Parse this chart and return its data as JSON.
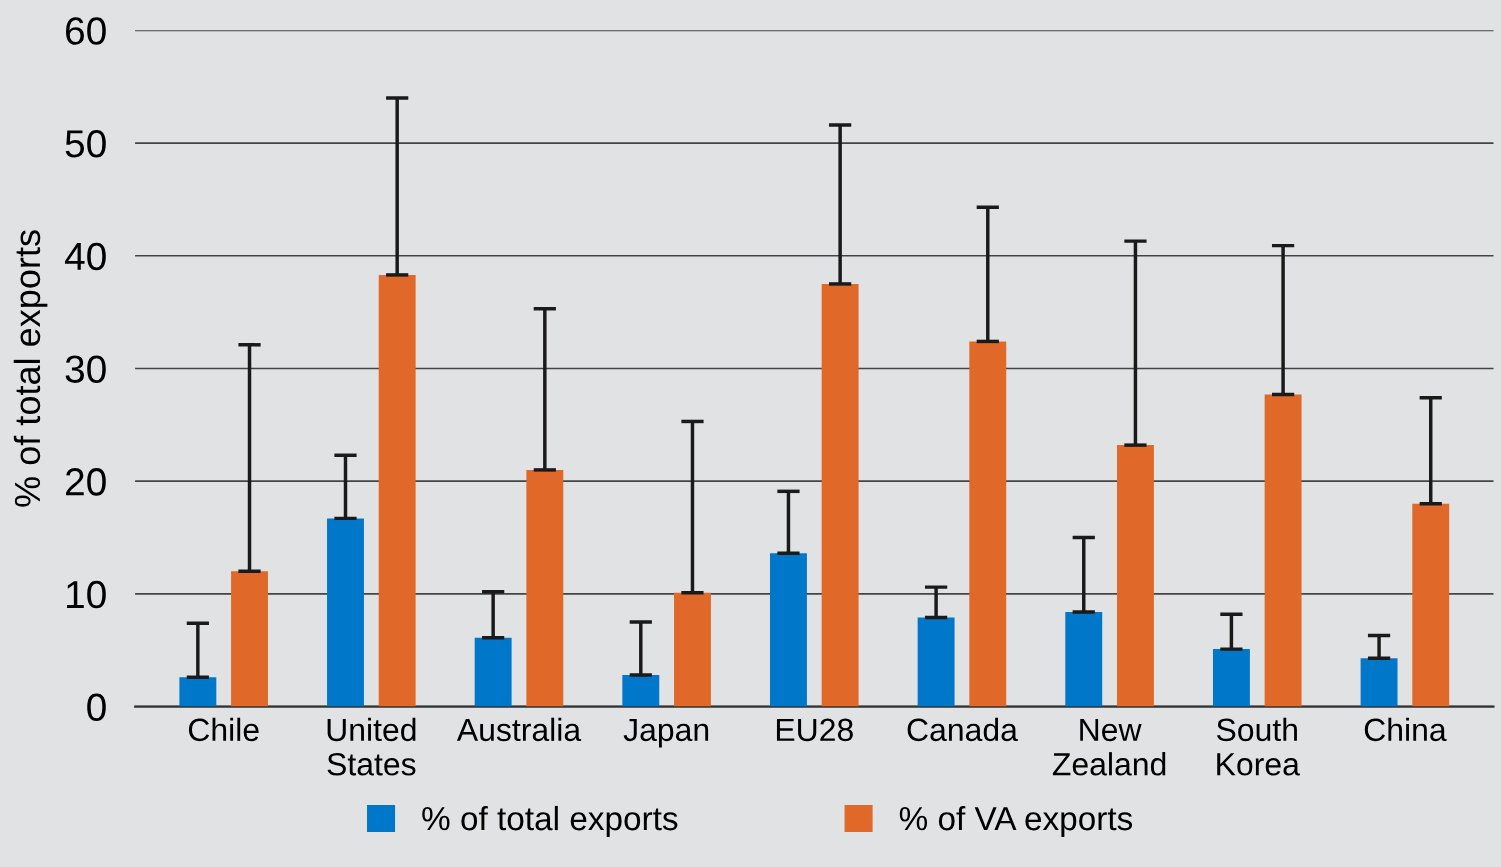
{
  "chart_data": {
    "type": "bar",
    "ylabel": "% of total exports",
    "categories": [
      "Chile",
      "United\nStates",
      "Australia",
      "Japan",
      "EU28",
      "Canada",
      "New\nZealand",
      "South\nKorea",
      "China"
    ],
    "series": [
      {
        "name": "% of total exports",
        "color": "#0077c8",
        "values": [
          2.6,
          16.7,
          6.1,
          2.8,
          13.6,
          7.9,
          8.4,
          5.1,
          4.3
        ],
        "errors": [
          [
            2.6,
            7.4
          ],
          [
            16.7,
            22.3
          ],
          [
            6.1,
            10.2
          ],
          [
            2.8,
            7.5
          ],
          [
            13.6,
            19.1
          ],
          [
            7.9,
            10.6
          ],
          [
            8.4,
            15.0
          ],
          [
            5.1,
            8.2
          ],
          [
            4.3,
            6.3
          ]
        ]
      },
      {
        "name": "% of VA exports",
        "color": "#e0692a",
        "values": [
          12.0,
          38.3,
          21.0,
          10.1,
          37.5,
          32.4,
          23.2,
          27.7,
          18.0
        ],
        "errors": [
          [
            12.0,
            32.1
          ],
          [
            38.3,
            54.0
          ],
          [
            21.0,
            35.3
          ],
          [
            10.1,
            25.3
          ],
          [
            37.5,
            51.6
          ],
          [
            32.4,
            44.3
          ],
          [
            23.2,
            41.3
          ],
          [
            27.7,
            40.9
          ],
          [
            18.0,
            27.4
          ]
        ]
      }
    ],
    "ylim": [
      0,
      60
    ],
    "yticks": [
      0,
      10,
      20,
      30,
      40,
      50,
      60
    ],
    "grid": "y",
    "legend": "bottom"
  }
}
